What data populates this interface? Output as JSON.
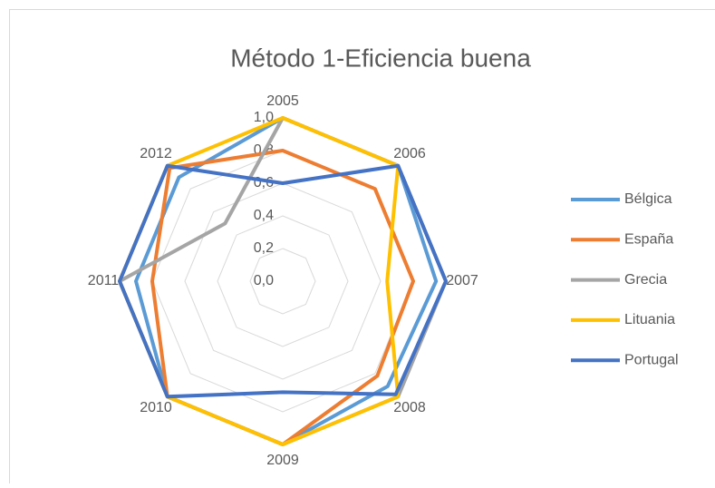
{
  "chart_data": {
    "type": "radar",
    "title": "Método 1-Eficiencia buena",
    "categories": [
      "2005",
      "2006",
      "2007",
      "2008",
      "2009",
      "2010",
      "2011",
      "2012"
    ],
    "series": [
      {
        "name": "Bélgica",
        "color": "#5b9bd5",
        "values": [
          1.0,
          1.0,
          0.94,
          0.91,
          1.0,
          1.0,
          0.9,
          0.9
        ]
      },
      {
        "name": "España",
        "color": "#ed7d31",
        "values": [
          0.8,
          0.8,
          0.8,
          0.82,
          1.0,
          1.0,
          0.8,
          0.98
        ]
      },
      {
        "name": "Grecia",
        "color": "#a5a5a5",
        "values": [
          1.0,
          1.0,
          1.0,
          1.0,
          1.0,
          1.0,
          1.0,
          0.5
        ]
      },
      {
        "name": "Lituania",
        "color": "#ffc000",
        "values": [
          1.0,
          1.0,
          0.64,
          1.0,
          1.0,
          1.0,
          1.0,
          1.0
        ]
      },
      {
        "name": "Portugal",
        "color": "#4472c4",
        "values": [
          0.6,
          1.0,
          1.0,
          0.98,
          0.68,
          1.0,
          1.0,
          1.0
        ]
      }
    ],
    "ylim": [
      0,
      1
    ],
    "yticks": [
      {
        "value": 0,
        "label": "0,0"
      },
      {
        "value": 0.2,
        "label": "0,2"
      },
      {
        "value": 0.4,
        "label": "0,4"
      },
      {
        "value": 0.6,
        "label": "0,6"
      },
      {
        "value": 0.8,
        "label": "0,8"
      },
      {
        "value": 1,
        "label": "1,0"
      }
    ],
    "grid": true,
    "legend": "right"
  }
}
